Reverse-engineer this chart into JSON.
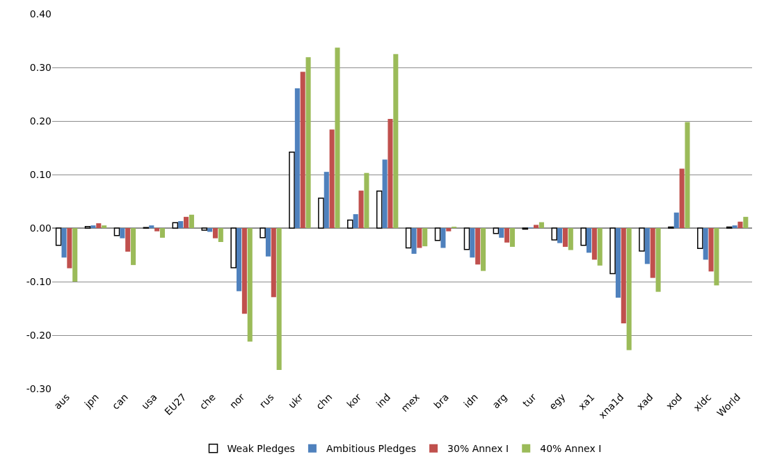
{
  "chart_data": {
    "type": "bar",
    "categories": [
      "aus",
      "jpn",
      "can",
      "usa",
      "EU27",
      "che",
      "nor",
      "rus",
      "ukr",
      "chn",
      "kor",
      "ind",
      "mex",
      "bra",
      "idn",
      "arg",
      "tur",
      "egy",
      "xa1",
      "xna1d",
      "xad",
      "xod",
      "xldc",
      "World"
    ],
    "series": [
      {
        "name": "Weak Pledges",
        "color": "#ffffff",
        "values": [
          -0.032,
          0.003,
          -0.014,
          0.001,
          0.01,
          -0.004,
          -0.074,
          -0.018,
          0.142,
          0.056,
          0.015,
          0.069,
          -0.037,
          -0.023,
          -0.04,
          -0.01,
          -0.002,
          -0.022,
          -0.032,
          -0.085,
          -0.043,
          0.002,
          -0.038,
          0.002
        ]
      },
      {
        "name": "Ambitious Pledges",
        "color": "#4f81bd",
        "values": [
          -0.055,
          0.005,
          -0.019,
          0.005,
          0.013,
          -0.007,
          -0.118,
          -0.053,
          0.261,
          0.105,
          0.026,
          0.128,
          -0.048,
          -0.037,
          -0.055,
          -0.018,
          0.001,
          -0.028,
          -0.046,
          -0.13,
          -0.067,
          0.029,
          -0.059,
          0.005
        ]
      },
      {
        "name": "30% Annex I",
        "color": "#c0504d",
        "values": [
          -0.075,
          0.009,
          -0.044,
          -0.006,
          0.021,
          -0.019,
          -0.16,
          -0.129,
          0.292,
          0.184,
          0.07,
          0.204,
          -0.037,
          -0.006,
          -0.068,
          -0.027,
          0.006,
          -0.035,
          -0.059,
          -0.178,
          -0.093,
          0.111,
          -0.081,
          0.012
        ]
      },
      {
        "name": "40% Annex I",
        "color": "#9bbb59",
        "values": [
          -0.1,
          0.005,
          -0.069,
          -0.018,
          0.025,
          -0.026,
          -0.212,
          -0.265,
          0.319,
          0.337,
          0.103,
          0.325,
          -0.034,
          0.002,
          -0.08,
          -0.035,
          0.011,
          -0.041,
          -0.07,
          -0.228,
          -0.119,
          0.198,
          -0.107,
          0.021
        ]
      }
    ],
    "ylim": [
      -0.3,
      0.4
    ],
    "yticks": [
      {
        "value": -0.3,
        "label": "-0.30"
      },
      {
        "value": -0.2,
        "label": "-0.20"
      },
      {
        "value": -0.1,
        "label": "-0.10"
      },
      {
        "value": 0,
        "label": "0.00"
      },
      {
        "value": 0.1,
        "label": "0.10"
      },
      {
        "value": 0.2,
        "label": "0.20"
      },
      {
        "value": 0.3,
        "label": "0.30"
      },
      {
        "value": 0.4,
        "label": "0.40"
      }
    ],
    "grid": "y",
    "legend": "bottom"
  }
}
